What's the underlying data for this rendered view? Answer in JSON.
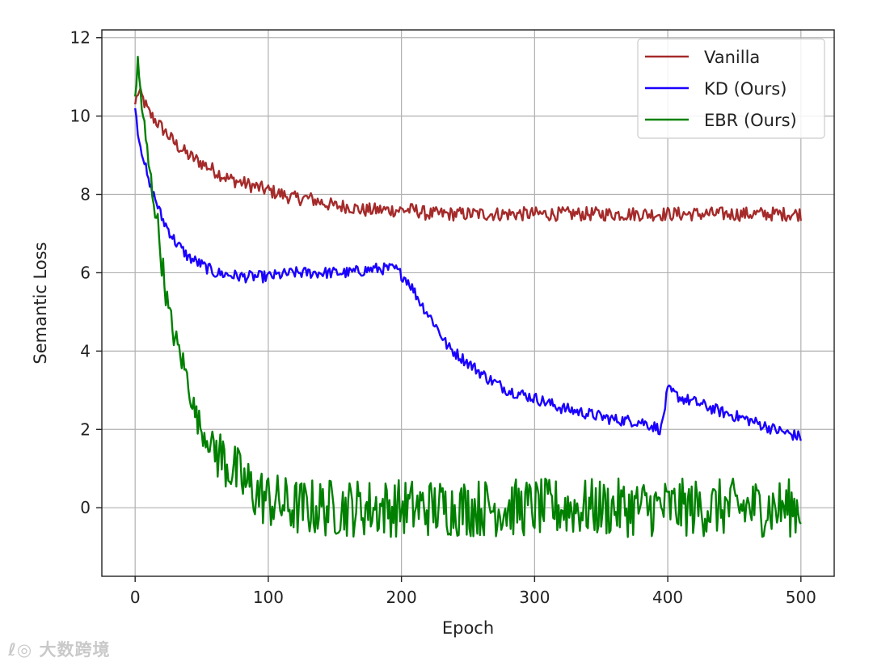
{
  "chart_data": {
    "type": "line",
    "xlabel": "Epoch",
    "ylabel": "Semantic Loss",
    "xlim": [
      -25,
      525
    ],
    "ylim": [
      -1.75,
      12.2
    ],
    "xticks": [
      0,
      100,
      200,
      300,
      400,
      500
    ],
    "yticks": [
      0,
      2,
      4,
      6,
      8,
      10,
      12
    ],
    "grid": true,
    "legend_position": "top-right",
    "series": [
      {
        "name": "Vanilla",
        "color": "#a52a2a",
        "x": [
          0,
          2,
          5,
          10,
          20,
          30,
          40,
          50,
          60,
          70,
          80,
          90,
          100,
          110,
          120,
          130,
          140,
          150,
          160,
          170,
          180,
          190,
          200,
          210,
          220,
          240,
          260,
          280,
          300,
          320,
          340,
          360,
          380,
          400,
          420,
          440,
          460,
          480,
          500
        ],
        "y": [
          10.3,
          10.6,
          10.5,
          10.1,
          9.7,
          9.3,
          9.0,
          8.8,
          8.6,
          8.4,
          8.3,
          8.2,
          8.1,
          8.0,
          7.9,
          7.9,
          7.8,
          7.7,
          7.7,
          7.6,
          7.6,
          7.6,
          7.6,
          7.6,
          7.5,
          7.5,
          7.5,
          7.5,
          7.5,
          7.5,
          7.5,
          7.5,
          7.5,
          7.5,
          7.5,
          7.5,
          7.5,
          7.5,
          7.5
        ],
        "noise": 0.18
      },
      {
        "name": "KD (Ours)",
        "color": "#1a00ff",
        "x": [
          0,
          3,
          6,
          10,
          15,
          20,
          30,
          40,
          50,
          60,
          70,
          80,
          90,
          100,
          120,
          140,
          160,
          180,
          195,
          205,
          215,
          225,
          235,
          250,
          265,
          280,
          300,
          320,
          340,
          360,
          380,
          395,
          400,
          410,
          420,
          440,
          460,
          480,
          500
        ],
        "y": [
          10.2,
          9.4,
          9.0,
          8.3,
          7.9,
          7.4,
          6.8,
          6.4,
          6.2,
          6.0,
          5.95,
          5.9,
          5.9,
          5.9,
          6.0,
          6.0,
          6.0,
          6.1,
          6.1,
          5.8,
          5.2,
          4.7,
          4.1,
          3.7,
          3.3,
          3.0,
          2.8,
          2.55,
          2.4,
          2.25,
          2.2,
          2.0,
          3.0,
          2.8,
          2.7,
          2.45,
          2.25,
          2.0,
          1.8
        ]
      },
      {
        "name": "EBR (Ours)",
        "color": "#008000",
        "x": [
          0,
          2,
          5,
          8,
          12,
          16,
          20,
          25,
          30,
          35,
          40,
          45,
          50,
          60,
          70,
          80,
          90,
          100,
          120,
          140,
          160,
          180,
          200,
          250,
          300,
          350,
          400,
          450,
          500
        ],
        "y": [
          10.5,
          11.3,
          10.3,
          9.3,
          8.3,
          7.5,
          6.3,
          5.0,
          4.3,
          3.8,
          3.2,
          2.4,
          2.0,
          1.5,
          1.1,
          0.7,
          0.4,
          0.2,
          0.0,
          0.0,
          0.0,
          0.0,
          0.0,
          0.0,
          0.0,
          0.0,
          0.0,
          0.0,
          0.0
        ],
        "noise": 0.75
      }
    ]
  },
  "watermark": {
    "text": "大数跨境"
  }
}
